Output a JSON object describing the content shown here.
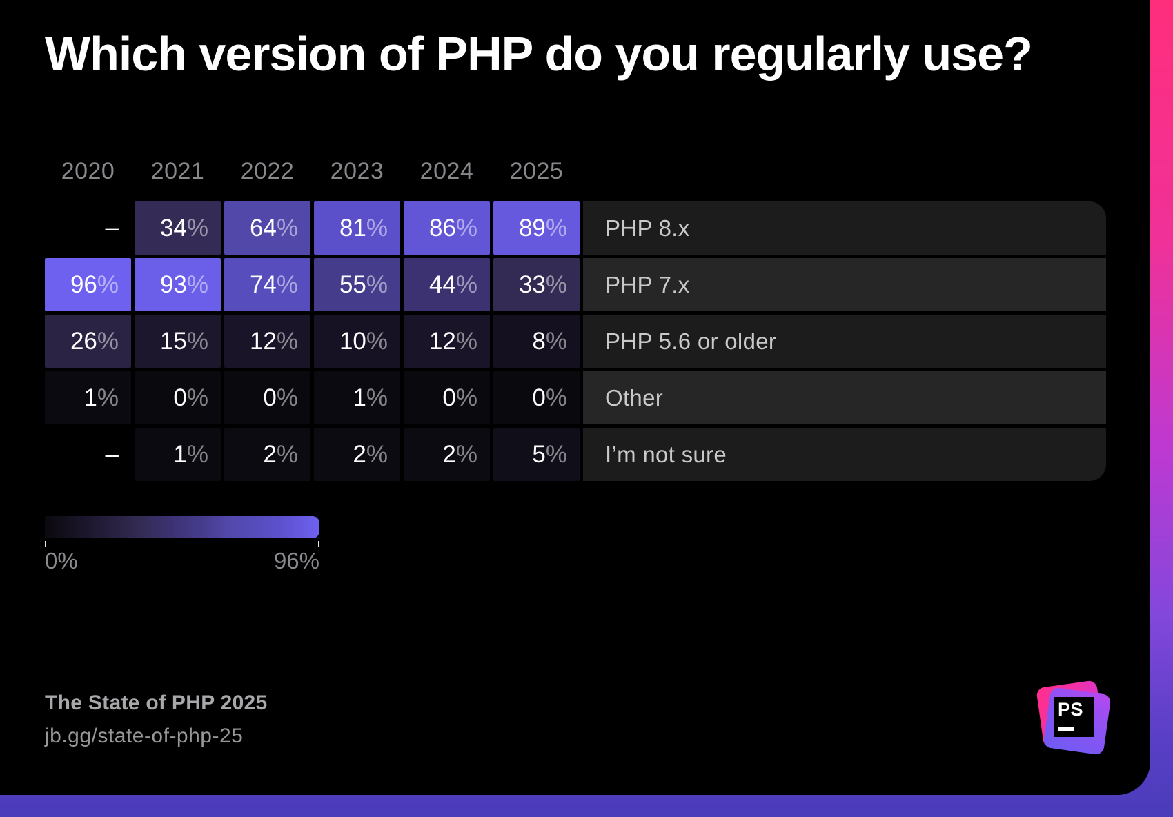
{
  "title": "Which version of PHP do you regularly use?",
  "chart_data": {
    "type": "heatmap",
    "columns": [
      "2020",
      "2021",
      "2022",
      "2023",
      "2024",
      "2025"
    ],
    "rows": [
      {
        "label": "PHP 8.x",
        "values": [
          null,
          34,
          64,
          81,
          86,
          89
        ]
      },
      {
        "label": "PHP 7.x",
        "values": [
          96,
          93,
          74,
          55,
          44,
          33
        ]
      },
      {
        "label": "PHP 5.6 or older",
        "values": [
          26,
          15,
          12,
          10,
          12,
          8
        ]
      },
      {
        "label": "Other",
        "values": [
          1,
          0,
          0,
          1,
          0,
          0
        ]
      },
      {
        "label": "I’m not sure",
        "values": [
          null,
          1,
          2,
          2,
          2,
          5
        ]
      }
    ],
    "value_suffix": "%",
    "null_display": "–",
    "legend": {
      "min": 0,
      "max": 96,
      "min_label": "0%",
      "max_label": "96%"
    },
    "color_scale_stops": [
      {
        "value": 0,
        "color": "#0a090e"
      },
      {
        "value": 15,
        "color": "#1d172d"
      },
      {
        "value": 33,
        "color": "#332b53"
      },
      {
        "value": 44,
        "color": "#3c3272"
      },
      {
        "value": 55,
        "color": "#463c8c"
      },
      {
        "value": 64,
        "color": "#5248aa"
      },
      {
        "value": 81,
        "color": "#5b50ca"
      },
      {
        "value": 96,
        "color": "#6f61f0"
      }
    ],
    "row_label_bg_odd": "#1c1c1d",
    "row_label_bg_even": "#262627"
  },
  "footer": {
    "source_title": "The State of PHP 2025",
    "source_link": "jb.gg/state-of-php-25"
  },
  "logo": {
    "label": "PS"
  },
  "colors": {
    "panel_background": "#000000",
    "title_text": "#ffffff",
    "year_text": "#87878c",
    "cell_text": "#ffffff",
    "row_label_text": "#c9c9cb",
    "edge_gradient_top": "#ff2e7c",
    "edge_gradient_bottom": "#4a3cba"
  }
}
